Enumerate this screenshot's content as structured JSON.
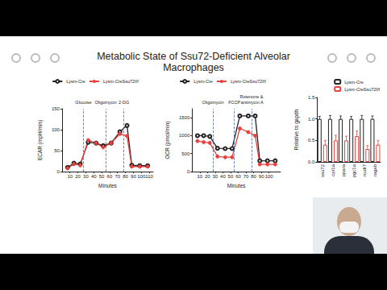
{
  "slide": {
    "title": "Metabolic State of Ssu72-Deficient Alveolar Macrophages"
  },
  "chart_data": [
    {
      "type": "line",
      "x_label": "Minutes",
      "y_label": "ECAR (mpH/min)",
      "x": [
        7,
        15,
        23,
        33,
        43,
        52,
        62,
        73,
        82,
        88,
        98,
        108
      ],
      "series": [
        {
          "name": "Lysm-Cre",
          "color": "#222222",
          "marker": "open_circle",
          "values": [
            10,
            20,
            18,
            70,
            68,
            62,
            68,
            95,
            110,
            15,
            14,
            14
          ]
        },
        {
          "name": "Lysm-CreSsu72f/f",
          "color": "#e8413c",
          "marker": "circle",
          "values": [
            8,
            18,
            15,
            75,
            68,
            58,
            68,
            90,
            85,
            12,
            12,
            12
          ]
        }
      ],
      "annotations": [
        {
          "x": 27,
          "text": "Glucose"
        },
        {
          "x": 55,
          "text": "Oligomycin"
        },
        {
          "x": 78,
          "text": "2-DG"
        }
      ],
      "xlim": [
        0,
        115
      ],
      "xticks": [
        10,
        20,
        30,
        40,
        50,
        60,
        70,
        80,
        90,
        100,
        110
      ],
      "ylim": [
        0,
        150
      ],
      "yticks": [
        0,
        50,
        100,
        150
      ],
      "grid": false,
      "legend": "top"
    },
    {
      "type": "line",
      "x_label": "Minutes",
      "y_label": "OCR (pmol/min)",
      "x": [
        7,
        15,
        23,
        33,
        43,
        52,
        62,
        73,
        82,
        88,
        98,
        108
      ],
      "series": [
        {
          "name": "Lysm-Cre",
          "color": "#222222",
          "marker": "open_circle",
          "values": [
            1000,
            1000,
            980,
            650,
            640,
            640,
            1550,
            1550,
            1550,
            300,
            300,
            300
          ]
        },
        {
          "name": "Lysm-CreSsu72f/f",
          "color": "#e8413c",
          "marker": "circle",
          "values": [
            850,
            820,
            800,
            420,
            400,
            400,
            1200,
            1100,
            1000,
            200,
            200,
            200
          ]
        }
      ],
      "annotations": [
        {
          "x": 27,
          "text": "Oligomycin"
        },
        {
          "x": 55,
          "text": "FCCP"
        },
        {
          "x": 78,
          "text": "Rotenone & antimycin A"
        }
      ],
      "xlim": [
        0,
        115
      ],
      "xticks": [
        10,
        20,
        30,
        40,
        50,
        60,
        70,
        80,
        90,
        100,
        110
      ],
      "ylim": [
        0,
        1750
      ],
      "yticks": [
        0,
        500,
        1000,
        1500
      ],
      "grid": false,
      "legend": "top"
    },
    {
      "type": "bar",
      "y_label": "Relative to gapdh",
      "categories": [
        "ssu72",
        "cpt1a",
        "ppara",
        "pgc1a",
        "nudt7",
        "ragab"
      ],
      "series": [
        {
          "name": "Lysm-Cre",
          "color": "#222222",
          "values": [
            1.0,
            1.0,
            1.0,
            1.0,
            1.0,
            1.0
          ],
          "errors": [
            0.06,
            0.08,
            0.07,
            0.06,
            0.08,
            0.07
          ]
        },
        {
          "name": "Lysm-CreSsu72f/f",
          "color": "#e8413c",
          "values": [
            0.4,
            0.5,
            0.5,
            0.6,
            0.3,
            0.4
          ],
          "errors": [
            0.1,
            0.12,
            0.1,
            0.12,
            0.08,
            0.1
          ]
        }
      ],
      "ylim": [
        0,
        1.5
      ],
      "yticks": [
        {
          "value": 0,
          "label": "0.0"
        },
        {
          "value": 0.5,
          "label": "0.5"
        },
        {
          "value": 1,
          "label": "1.0"
        },
        {
          "value": 1.5,
          "label": "1.5"
        }
      ],
      "grid": false,
      "legend": "right"
    }
  ]
}
